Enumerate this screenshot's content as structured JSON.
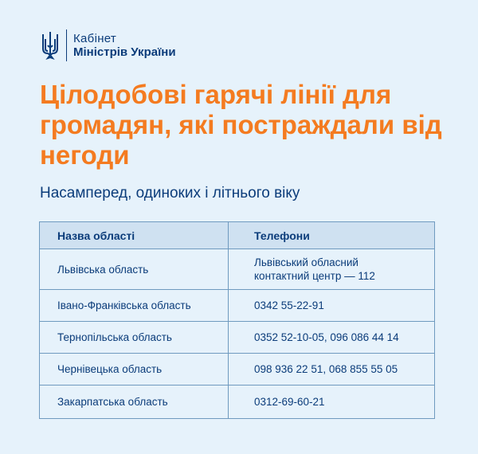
{
  "brand": {
    "line1": "Кабінет",
    "line2": "Міністрів України",
    "icon": "trident-icon"
  },
  "title": "Цілодобові гарячі лінії для громадян, які постраждали від негоди",
  "subtitle": "Насамперед, одиноких і літнього віку",
  "colors": {
    "accent": "#f47b20",
    "text": "#0b3c7a",
    "background": "#e6f2fb",
    "header": "#cfe1f1"
  },
  "table": {
    "headers": [
      "Назва області",
      "Телефони"
    ],
    "rows": [
      {
        "region": "Львівська область",
        "phones": "Львівський обласний контактний центр — 112"
      },
      {
        "region": "Івано-Франківська область",
        "phones": "0342 55-22-91"
      },
      {
        "region": "Тернопільська область",
        "phones": "0352 52-10-05, 096 086 44 14"
      },
      {
        "region": "Чернівецька область",
        "phones": "098 936 22 51, 068 855 55 05"
      },
      {
        "region": "Закарпатська область",
        "phones": "0312-69-60-21"
      }
    ]
  }
}
